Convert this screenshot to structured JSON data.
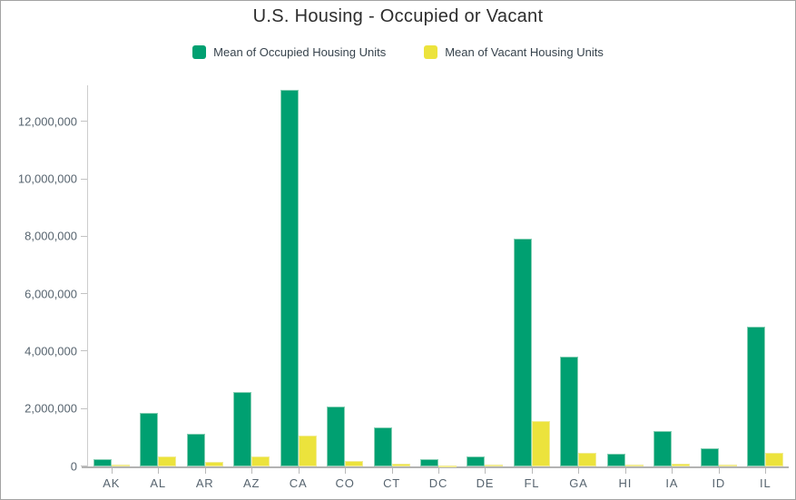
{
  "window": {
    "title": "U.S. Housing - Occupied or Vacant"
  },
  "colors": {
    "occupied": "#00a071",
    "vacant": "#ece33c",
    "axis_line": "#cdcdcd",
    "baseline": "#b3b3b3",
    "tick_label": "#57646f",
    "title_text": "#2d2d2d",
    "legend_text": "#37434d"
  },
  "legend": {
    "items": [
      {
        "label": "Mean of Occupied Housing Units",
        "color": "#00a071",
        "swatch": "green-swatch"
      },
      {
        "label": "Mean of Vacant Housing Units",
        "color": "#ece33c",
        "swatch": "yellow-swatch"
      }
    ]
  },
  "chart_data": {
    "type": "bar",
    "title": "U.S. Housing - Occupied or Vacant",
    "xlabel": "",
    "ylabel": "",
    "grid": false,
    "legend_position": "top",
    "categories": [
      "AK",
      "AL",
      "AR",
      "AZ",
      "CA",
      "CO",
      "CT",
      "DC",
      "DE",
      "FL",
      "GA",
      "HI",
      "IA",
      "ID",
      "IL"
    ],
    "series": [
      {
        "name": "Mean of Occupied Housing Units",
        "color": "#00a071",
        "values": [
          250000,
          1850000,
          1130000,
          2580000,
          13100000,
          2100000,
          1360000,
          260000,
          340000,
          7920000,
          3810000,
          450000,
          1240000,
          620000,
          4860000
        ]
      },
      {
        "name": "Mean of Vacant Housing Units",
        "color": "#ece33c",
        "values": [
          70000,
          340000,
          170000,
          360000,
          1080000,
          200000,
          100000,
          30000,
          60000,
          1590000,
          470000,
          60000,
          110000,
          70000,
          470000
        ]
      }
    ],
    "ylim": [
      0,
      13300000
    ],
    "y_ticks": [
      0,
      2000000,
      4000000,
      6000000,
      8000000,
      10000000,
      12000000
    ],
    "y_tick_labels": [
      "0",
      "2,000,000",
      "4,000,000",
      "6,000,000",
      "8,000,000",
      "10,000,000",
      "12,000,000"
    ]
  }
}
